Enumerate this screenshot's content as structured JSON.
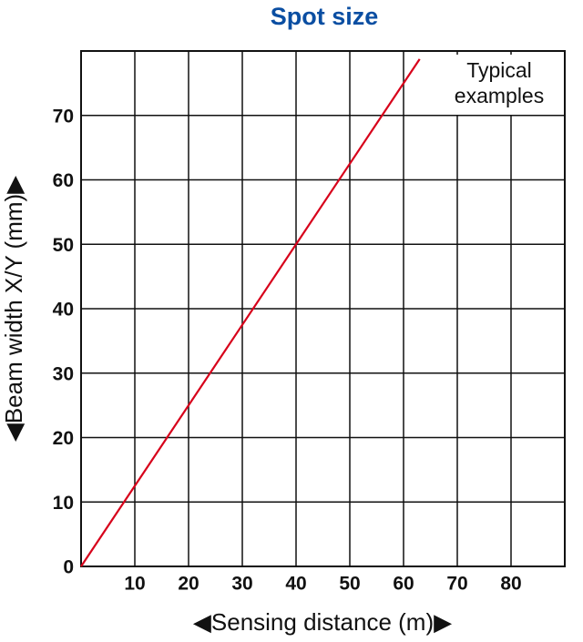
{
  "chart_data": {
    "type": "line",
    "title": "Spot size",
    "xlabel": "◀Sensing distance (m)▶",
    "ylabel": "◀Beam width X/Y (mm)▶",
    "annotation": [
      "Typical",
      "examples"
    ],
    "x": [
      0,
      63
    ],
    "series": [
      {
        "color": "#d7001a",
        "values": [
          0,
          78.75
        ]
      }
    ],
    "xlim": [
      0,
      90
    ],
    "ylim": [
      0,
      80
    ],
    "xticks": [
      10,
      20,
      30,
      40,
      50,
      60,
      70,
      80
    ],
    "yticks": [
      0,
      10,
      20,
      30,
      40,
      50,
      60,
      70
    ],
    "grid": true
  }
}
